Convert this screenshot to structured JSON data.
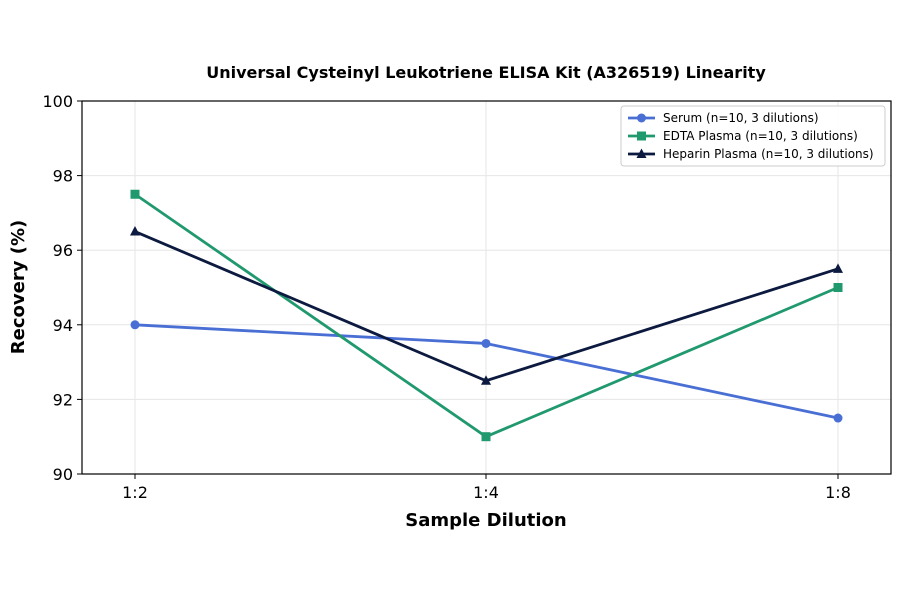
{
  "chart_data": {
    "type": "line",
    "title": "Universal Cysteinyl Leukotriene ELISA Kit (A326519) Linearity",
    "xlabel": "Sample Dilution",
    "ylabel": "Recovery (%)",
    "categories": [
      "1:2",
      "1:4",
      "1:8"
    ],
    "ylim": [
      90,
      100
    ],
    "yticks": [
      90,
      92,
      94,
      96,
      98,
      100
    ],
    "grid": true,
    "legend_position": "top-right",
    "series": [
      {
        "name": "Serum (n=10, 3 dilutions)",
        "values": [
          94.0,
          93.5,
          91.5
        ],
        "color": "#4a6fd4",
        "marker": "circle"
      },
      {
        "name": "EDTA Plasma (n=10, 3 dilutions)",
        "values": [
          97.5,
          91.0,
          95.0
        ],
        "color": "#21996e",
        "marker": "square"
      },
      {
        "name": "Heparin Plasma (n=10, 3 dilutions)",
        "values": [
          96.5,
          92.5,
          95.5
        ],
        "color": "#0d1a40",
        "marker": "triangle"
      }
    ]
  }
}
